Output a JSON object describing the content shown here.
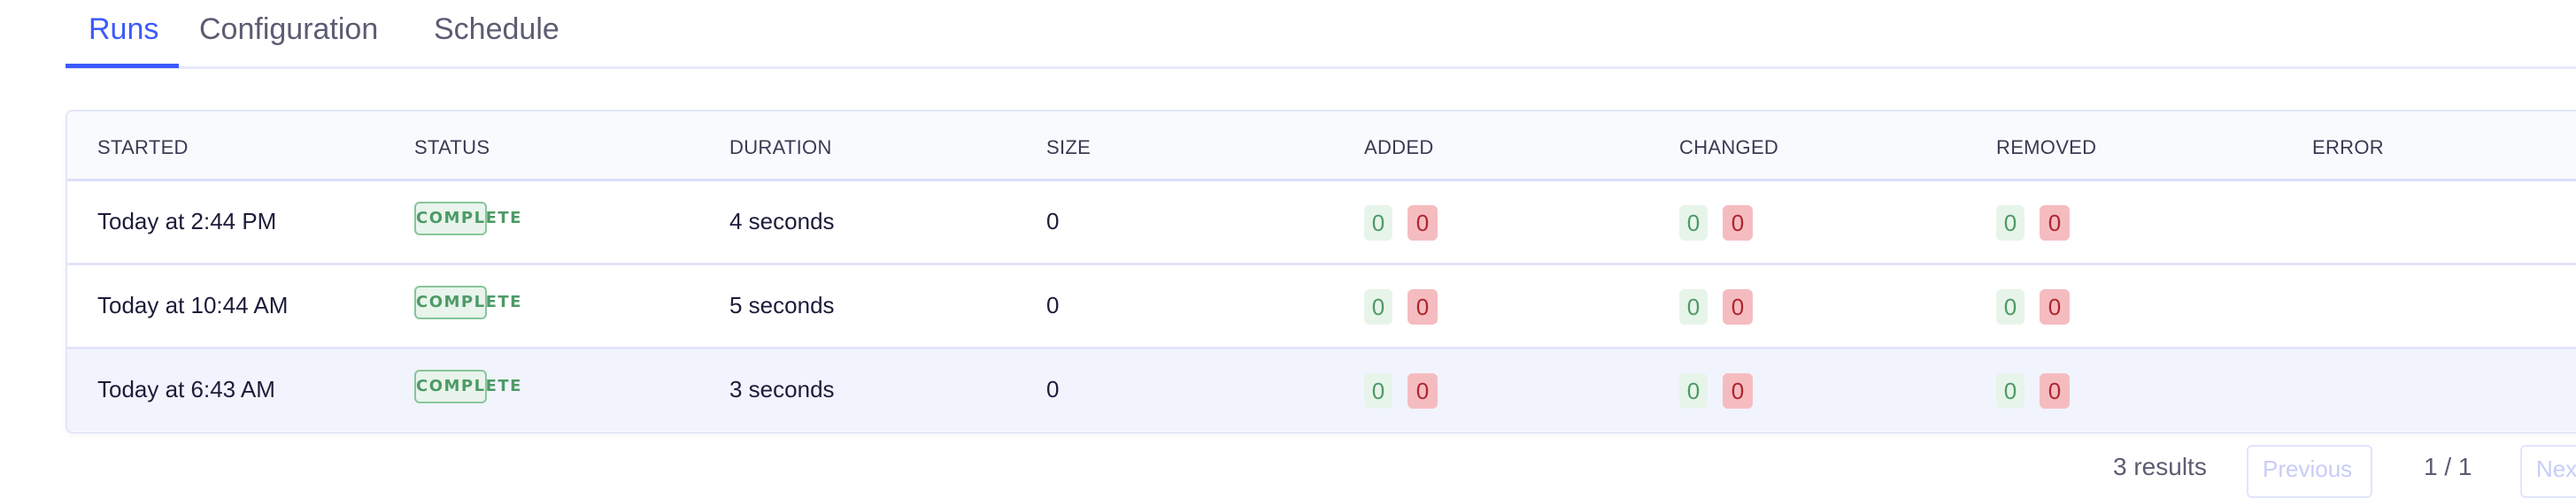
{
  "tabs": [
    {
      "label": "Runs",
      "active": true
    },
    {
      "label": "Configuration",
      "active": false
    },
    {
      "label": "Schedule",
      "active": false
    }
  ],
  "colors": {
    "accent": "#3d5afe",
    "success": "#4e9a66",
    "danger": "#b0252c"
  },
  "table": {
    "columns": [
      "STARTED",
      "STATUS",
      "DURATION",
      "SIZE",
      "ADDED",
      "CHANGED",
      "REMOVED",
      "ERROR"
    ],
    "rows": [
      {
        "started": "Today at 2:44 PM",
        "status": "COMPLETE",
        "duration": "4 seconds",
        "size": "0",
        "added": {
          "plus": "0",
          "minus": "0"
        },
        "changed": {
          "plus": "0",
          "minus": "0"
        },
        "removed": {
          "plus": "0",
          "minus": "0"
        },
        "error": ""
      },
      {
        "started": "Today at 10:44 AM",
        "status": "COMPLETE",
        "duration": "5 seconds",
        "size": "0",
        "added": {
          "plus": "0",
          "minus": "0"
        },
        "changed": {
          "plus": "0",
          "minus": "0"
        },
        "removed": {
          "plus": "0",
          "minus": "0"
        },
        "error": ""
      },
      {
        "started": "Today at 6:43 AM",
        "status": "COMPLETE",
        "duration": "3 seconds",
        "size": "0",
        "added": {
          "plus": "0",
          "minus": "0"
        },
        "changed": {
          "plus": "0",
          "minus": "0"
        },
        "removed": {
          "plus": "0",
          "minus": "0"
        },
        "error": ""
      }
    ]
  },
  "pagination": {
    "results": "3 results",
    "previous": "Previous",
    "page": "1 / 1",
    "next": "Next"
  }
}
